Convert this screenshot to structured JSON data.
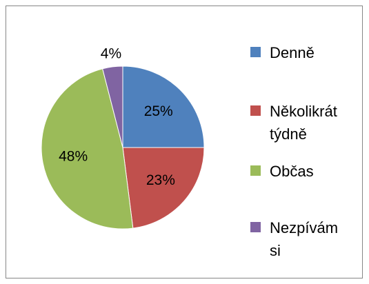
{
  "chart_data": {
    "type": "pie",
    "categories": [
      "Denně",
      "Několikrát týdně",
      "Občas",
      "Nezpívám si"
    ],
    "values": [
      25,
      23,
      48,
      4
    ],
    "value_labels": [
      "25%",
      "23%",
      "48%",
      "4%"
    ],
    "colors": [
      "#4f81bd",
      "#c0504d",
      "#9bbb59",
      "#8064a2"
    ],
    "legend": "right"
  }
}
